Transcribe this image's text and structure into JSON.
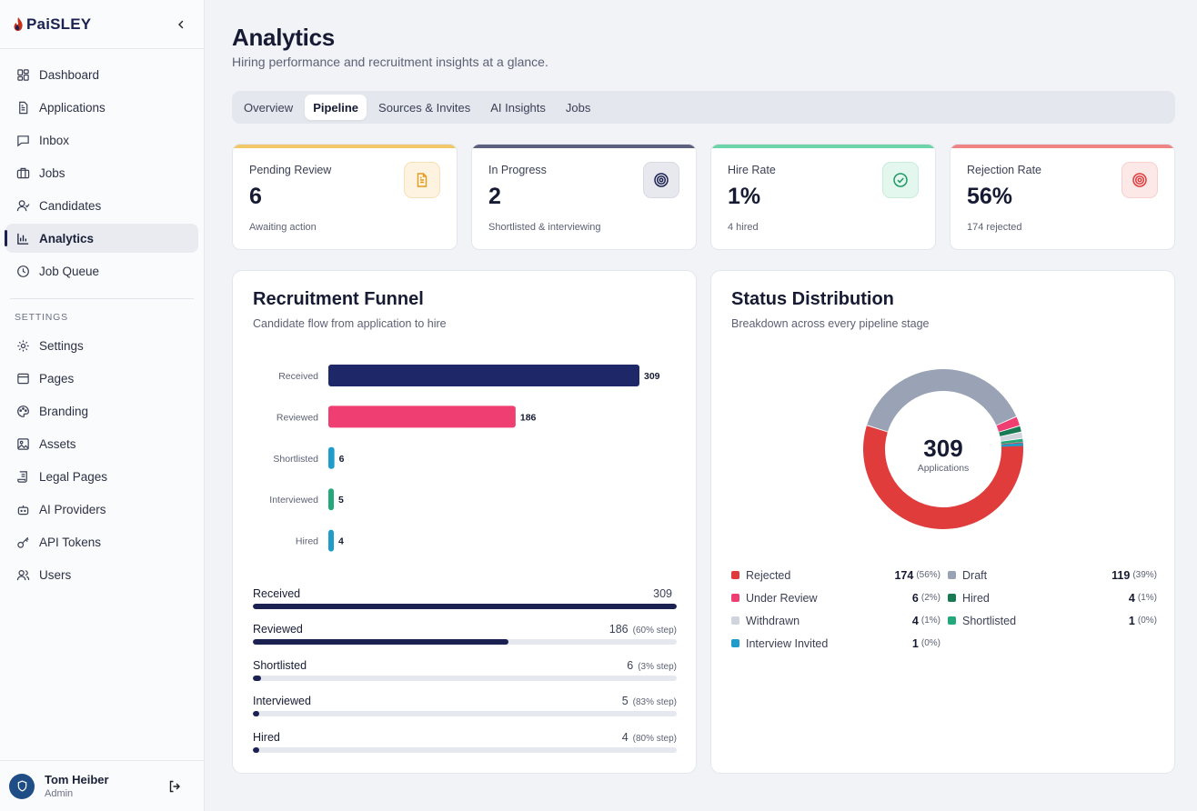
{
  "app": {
    "brand": "PaiSLEY"
  },
  "sidebar": {
    "items": [
      {
        "label": "Dashboard",
        "icon": "dashboard-icon"
      },
      {
        "label": "Applications",
        "icon": "document-icon"
      },
      {
        "label": "Inbox",
        "icon": "message-icon"
      },
      {
        "label": "Jobs",
        "icon": "briefcase-icon"
      },
      {
        "label": "Candidates",
        "icon": "user-icon"
      },
      {
        "label": "Analytics",
        "icon": "bar-chart-icon",
        "active": true
      },
      {
        "label": "Job Queue",
        "icon": "clock-icon"
      }
    ],
    "settings_title": "SETTINGS",
    "settings_items": [
      {
        "label": "Settings",
        "icon": "gear-icon"
      },
      {
        "label": "Pages",
        "icon": "page-icon"
      },
      {
        "label": "Branding",
        "icon": "palette-icon"
      },
      {
        "label": "Assets",
        "icon": "image-icon"
      },
      {
        "label": "Legal Pages",
        "icon": "scroll-icon"
      },
      {
        "label": "AI Providers",
        "icon": "bot-icon"
      },
      {
        "label": "API Tokens",
        "icon": "key-icon"
      },
      {
        "label": "Users",
        "icon": "users-icon"
      }
    ],
    "user": {
      "name": "Tom Heiber",
      "role": "Admin"
    }
  },
  "header": {
    "title": "Analytics",
    "subtitle": "Hiring performance and recruitment insights at a glance."
  },
  "tabs": [
    {
      "label": "Overview"
    },
    {
      "label": "Pipeline",
      "active": true
    },
    {
      "label": "Sources & Invites"
    },
    {
      "label": "AI Insights"
    },
    {
      "label": "Jobs"
    }
  ],
  "stats": [
    {
      "label": "Pending Review",
      "value": "6",
      "sub": "Awaiting action",
      "accent": "#f0c76b",
      "icon": "document-icon",
      "icon_bg": "#fdf3e0",
      "icon_color": "#e49a1c"
    },
    {
      "label": "In Progress",
      "value": "2",
      "sub": "Shortlisted & interviewing",
      "accent": "#5c5f7e",
      "icon": "target-icon",
      "icon_bg": "#e8e9ee",
      "icon_color": "#1b2151"
    },
    {
      "label": "Hire Rate",
      "value": "1%",
      "sub": "4 hired",
      "accent": "#6dd3a8",
      "icon": "check-circle-icon",
      "icon_bg": "#e4f7ee",
      "icon_color": "#1f9a66"
    },
    {
      "label": "Rejection Rate",
      "value": "56%",
      "sub": "174 rejected",
      "accent": "#ee8484",
      "icon": "target-icon",
      "icon_bg": "#fde8e8",
      "icon_color": "#e03c3c"
    }
  ],
  "funnel": {
    "title": "Recruitment Funnel",
    "subtitle": "Candidate flow from application to hire",
    "progress": [
      {
        "label": "Received",
        "value": "309",
        "step": "",
        "fraction": 1.0
      },
      {
        "label": "Reviewed",
        "value": "186",
        "step": "(60% step)",
        "fraction": 0.602
      },
      {
        "label": "Shortlisted",
        "value": "6",
        "step": "(3% step)",
        "fraction": 0.019
      },
      {
        "label": "Interviewed",
        "value": "5",
        "step": "(83% step)",
        "fraction": 0.016
      },
      {
        "label": "Hired",
        "value": "4",
        "step": "(80% step)",
        "fraction": 0.013
      }
    ]
  },
  "status": {
    "title": "Status Distribution",
    "subtitle": "Breakdown across every pipeline stage",
    "center_value": "309",
    "center_label": "Applications",
    "legend": [
      {
        "name": "Rejected",
        "count": "174",
        "pct": "(56%)",
        "color": "#e03c3c"
      },
      {
        "name": "Draft",
        "count": "119",
        "pct": "(39%)",
        "color": "#9aa3b5"
      },
      {
        "name": "Under Review",
        "count": "6",
        "pct": "(2%)",
        "color": "#ef3f72"
      },
      {
        "name": "Hired",
        "count": "4",
        "pct": "(1%)",
        "color": "#177a52"
      },
      {
        "name": "Withdrawn",
        "count": "4",
        "pct": "(1%)",
        "color": "#cfd4dd"
      },
      {
        "name": "Shortlisted",
        "count": "1",
        "pct": "(0%)",
        "color": "#22a87a"
      },
      {
        "name": "Interview Invited",
        "count": "1",
        "pct": "(0%)",
        "color": "#1f9cc9"
      }
    ]
  },
  "chart_data": [
    {
      "type": "bar",
      "orientation": "horizontal",
      "categories": [
        "Received",
        "Reviewed",
        "Shortlisted",
        "Interviewed",
        "Hired"
      ],
      "values": [
        309,
        186,
        6,
        5,
        4
      ],
      "colors": [
        "#1e2869",
        "#ef3f72",
        "#1f9cc9",
        "#22a87a",
        "#1f9cc9"
      ]
    },
    {
      "type": "pie",
      "donut": true,
      "series": [
        {
          "name": "Rejected",
          "value": 174,
          "color": "#e03c3c"
        },
        {
          "name": "Draft",
          "value": 119,
          "color": "#9aa3b5"
        },
        {
          "name": "Under Review",
          "value": 6,
          "color": "#ef3f72"
        },
        {
          "name": "Hired",
          "value": 4,
          "color": "#177a52"
        },
        {
          "name": "Withdrawn",
          "value": 4,
          "color": "#cfd4dd"
        },
        {
          "name": "Shortlisted",
          "value": 1,
          "color": "#22a87a"
        },
        {
          "name": "Interview Invited",
          "value": 1,
          "color": "#1f9cc9"
        }
      ]
    }
  ]
}
